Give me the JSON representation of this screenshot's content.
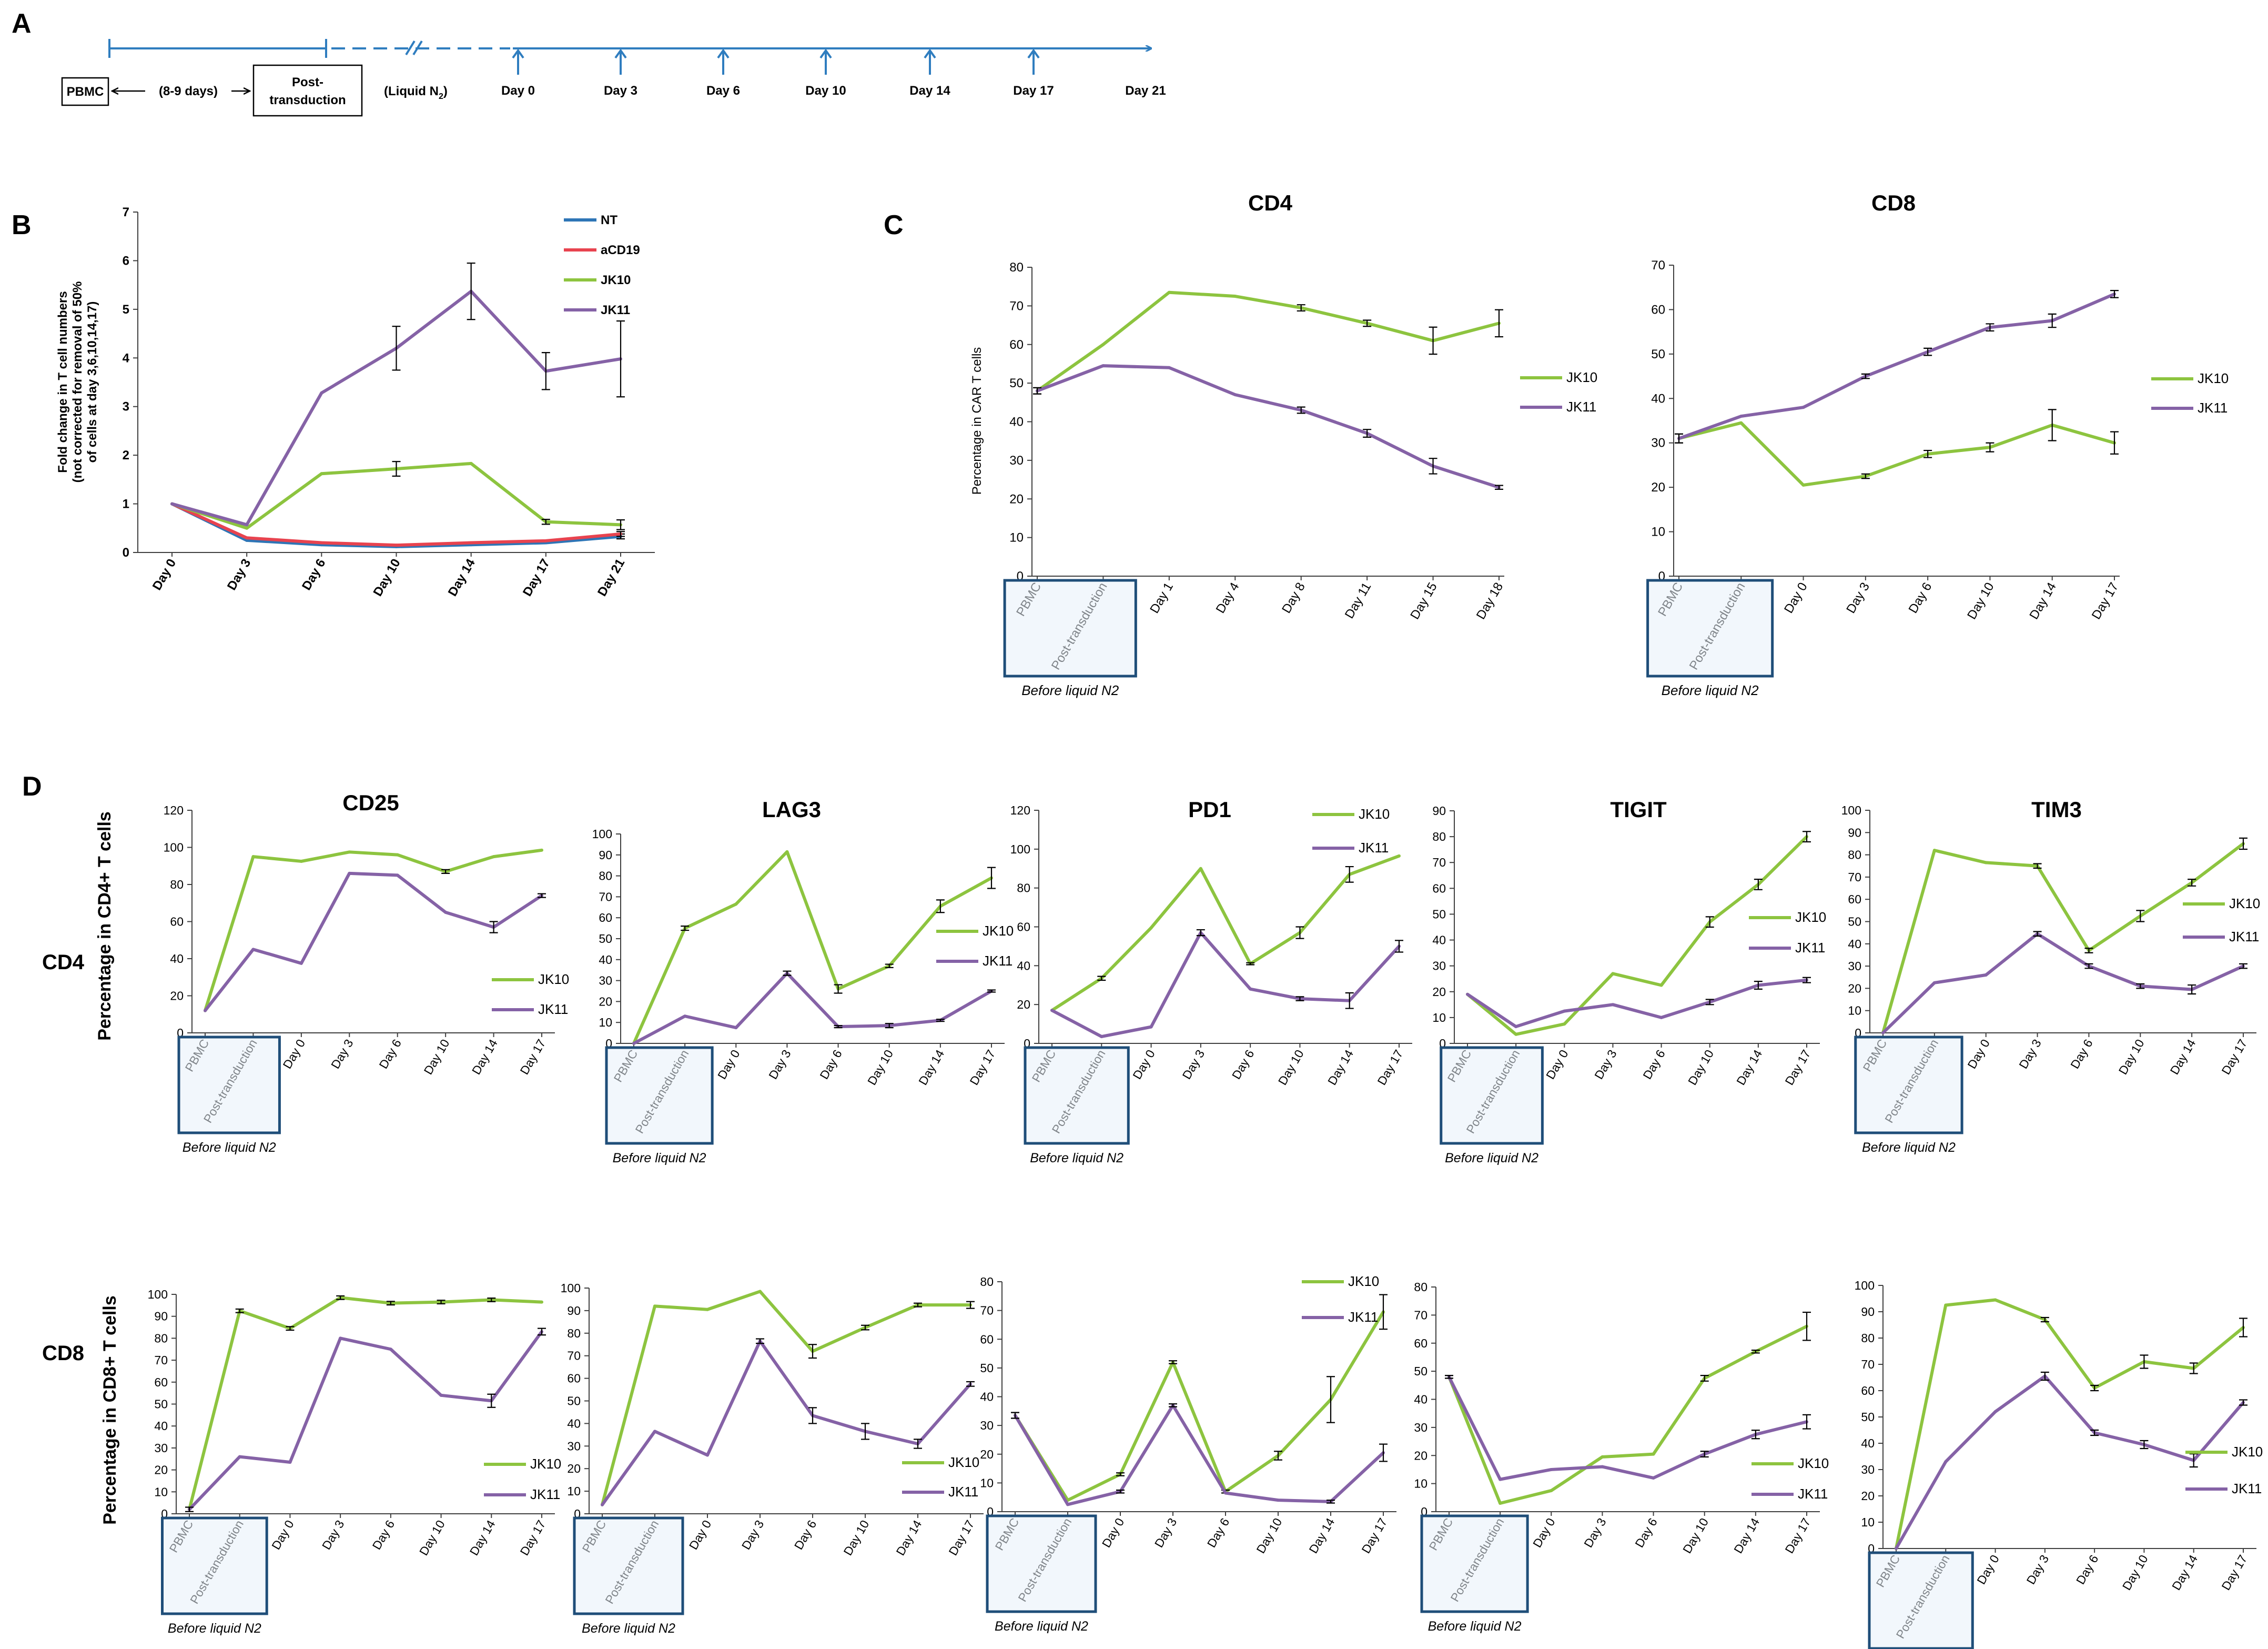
{
  "colors": {
    "NT": "#2E75B6",
    "aCD19": "#E8434F",
    "JK10": "#8DC43F",
    "JK11": "#8562A6",
    "timeline": "#2F7DBF",
    "box_fill": "#E8F1FA",
    "box_stroke": "#1F4E79",
    "axis": "#404040"
  },
  "panel_labels": {
    "a": "A",
    "b": "B",
    "c": "C",
    "d": "D"
  },
  "timeline": {
    "pbmc": "PBMC",
    "gap": "(8-9 days)",
    "post_line1": "Post-",
    "post_line2": "transduction",
    "liquid_prefix": "(Liquid N",
    "liquid_sub": "2",
    "liquid_suffix": ")",
    "days": [
      "Day 0",
      "Day 3",
      "Day 6",
      "Day 10",
      "Day 14",
      "Day 17",
      "Day 21"
    ]
  },
  "row_labels": {
    "cd4": "CD4",
    "cd8": "CD8"
  },
  "before_label": "Before liquid N2",
  "chart_data": [
    {
      "id": "B",
      "type": "line",
      "title": "",
      "ylabel": "Fold change in T cell numbers (not corrected for removal of 50% of cells at day 3,6,10,14,17)",
      "ylabel_lines": [
        "Fold change in T cell numbers",
        "(not corrected for removal of 50%",
        "of cells at day 3,6,10,14,17)"
      ],
      "xlabel": "",
      "ylim": [
        0,
        7
      ],
      "yticks": [
        0,
        1,
        2,
        3,
        4,
        5,
        6,
        7
      ],
      "categories": [
        "Day 0",
        "Day 3",
        "Day 6",
        "Day 10",
        "Day 14",
        "Day 17",
        "Day 21"
      ],
      "series": [
        {
          "name": "NT",
          "values": [
            1,
            0.25,
            0.16,
            0.12,
            0.16,
            0.2,
            0.33
          ],
          "errors": [
            0,
            0,
            0,
            0,
            0,
            0,
            0.05
          ]
        },
        {
          "name": "aCD19",
          "values": [
            1,
            0.3,
            0.2,
            0.15,
            0.2,
            0.24,
            0.38
          ],
          "errors": [
            0,
            0,
            0,
            0,
            0,
            0,
            0.05
          ]
        },
        {
          "name": "JK10",
          "values": [
            1,
            0.5,
            1.62,
            1.72,
            1.83,
            0.63,
            0.57
          ],
          "errors": [
            0,
            0,
            0,
            0.15,
            0,
            0.05,
            0.1
          ]
        },
        {
          "name": "JK11",
          "values": [
            1,
            0.57,
            3.28,
            4.2,
            5.37,
            3.73,
            3.98
          ],
          "errors": [
            0,
            0,
            0,
            0.45,
            0.58,
            0.38,
            0.78
          ]
        }
      ]
    },
    {
      "id": "C_CD4",
      "type": "line",
      "title": "CD4",
      "ylabel": "Percentage in CAR T cells",
      "ylim": [
        0,
        80
      ],
      "yticks": [
        0,
        10,
        20,
        30,
        40,
        50,
        60,
        70,
        80
      ],
      "categories": [
        "PBMC",
        "Post-transduction",
        "Day 1",
        "Day 4",
        "Day 8",
        "Day 11",
        "Day 15",
        "Day 18"
      ],
      "series": [
        {
          "name": "JK10",
          "values": [
            48,
            60,
            73.5,
            72.5,
            69.5,
            65.5,
            61,
            65.5
          ],
          "errors": [
            0.8,
            0,
            0,
            0,
            0.8,
            0.8,
            3.5,
            3.5
          ]
        },
        {
          "name": "JK11",
          "values": [
            48,
            54.5,
            54,
            47,
            43,
            37,
            28.5,
            23
          ],
          "errors": [
            0.8,
            0,
            0,
            0,
            0.8,
            1,
            2,
            0.5
          ]
        }
      ]
    },
    {
      "id": "C_CD8",
      "type": "line",
      "title": "CD8",
      "ylabel": "",
      "ylim": [
        0,
        70
      ],
      "yticks": [
        0,
        10,
        20,
        30,
        40,
        50,
        60,
        70
      ],
      "categories": [
        "PBMC",
        "Post-transduction",
        "Day 0",
        "Day 3",
        "Day 6",
        "Day 10",
        "Day 14",
        "Day 17"
      ],
      "series": [
        {
          "name": "JK10",
          "values": [
            31,
            34.5,
            20.5,
            22.5,
            27.5,
            29,
            34,
            30
          ],
          "errors": [
            1,
            0,
            0,
            0.5,
            0.8,
            1,
            3.5,
            2.5
          ]
        },
        {
          "name": "JK11",
          "values": [
            31,
            36,
            38,
            45,
            50.5,
            56,
            57.5,
            63.5
          ],
          "errors": [
            1,
            0,
            0,
            0.5,
            0.8,
            0.8,
            1.5,
            0.8
          ]
        }
      ]
    },
    {
      "id": "D_CD4_CD25",
      "type": "line",
      "title": "CD25",
      "ylabel": "Percentage in CD4+ T cells",
      "ylim": [
        0,
        120
      ],
      "yticks": [
        0,
        20,
        40,
        60,
        80,
        100,
        120
      ],
      "categories": [
        "PBMC",
        "Post-transduction",
        "Day 0",
        "Day 3",
        "Day 6",
        "Day 10",
        "Day 14",
        "Day 17"
      ],
      "series": [
        {
          "name": "JK10",
          "values": [
            12,
            95,
            92.5,
            97.5,
            96,
            87,
            95,
            98.5
          ],
          "errors": [
            0,
            0,
            0,
            0,
            0,
            1,
            0,
            0
          ]
        },
        {
          "name": "JK11",
          "values": [
            12,
            45,
            37.5,
            86,
            85,
            65,
            57,
            74
          ],
          "errors": [
            0,
            0,
            0,
            0,
            0,
            0,
            3,
            1
          ]
        }
      ]
    },
    {
      "id": "D_CD4_LAG3",
      "type": "line",
      "title": "LAG3",
      "ylabel": "",
      "ylim": [
        0,
        100
      ],
      "yticks": [
        0,
        10,
        20,
        30,
        40,
        50,
        60,
        70,
        80,
        90,
        100
      ],
      "categories": [
        "PBMC",
        "Post-transduction",
        "Day 0",
        "Day 3",
        "Day 6",
        "Day 10",
        "Day 14",
        "Day 17"
      ],
      "series": [
        {
          "name": "JK10",
          "values": [
            0,
            55,
            66.5,
            91.5,
            26,
            37,
            65.5,
            79
          ],
          "errors": [
            0,
            1,
            0,
            0,
            2,
            0.8,
            3,
            5
          ]
        },
        {
          "name": "JK11",
          "values": [
            0,
            13,
            7.5,
            33.5,
            8,
            8.5,
            11,
            25
          ],
          "errors": [
            0,
            0,
            0,
            1,
            0.5,
            1,
            0.5,
            0.5
          ]
        }
      ]
    },
    {
      "id": "D_CD4_PD1",
      "type": "line",
      "title": "PD1",
      "ylabel": "",
      "ylim": [
        0,
        120
      ],
      "yticks": [
        0,
        20,
        40,
        60,
        80,
        100,
        120
      ],
      "categories": [
        "PBMC",
        "Post-transduction",
        "Day 0",
        "Day 3",
        "Day 6",
        "Day 10",
        "Day 14",
        "Day 17"
      ],
      "series": [
        {
          "name": "JK10",
          "values": [
            17,
            33.5,
            59.5,
            90,
            41,
            57,
            87,
            96.5
          ],
          "errors": [
            0,
            1,
            0,
            0,
            0.5,
            3,
            4,
            0
          ]
        },
        {
          "name": "JK11",
          "values": [
            17,
            3.5,
            8.5,
            57,
            28,
            23,
            22,
            50
          ],
          "errors": [
            0,
            0,
            0,
            1.5,
            0,
            1,
            4,
            3
          ]
        }
      ]
    },
    {
      "id": "D_CD4_TIGIT",
      "type": "line",
      "title": "TIGIT",
      "ylabel": "",
      "ylim": [
        0,
        90
      ],
      "yticks": [
        0,
        10,
        20,
        30,
        40,
        50,
        60,
        70,
        80,
        90
      ],
      "categories": [
        "PBMC",
        "Post-transduction",
        "Day 0",
        "Day 3",
        "Day 6",
        "Day 10",
        "Day 14",
        "Day 17"
      ],
      "series": [
        {
          "name": "JK10",
          "values": [
            19,
            3.5,
            7.5,
            27,
            22.5,
            47,
            61.5,
            80
          ],
          "errors": [
            0,
            0,
            0,
            0,
            0,
            2,
            2,
            2
          ]
        },
        {
          "name": "JK11",
          "values": [
            19,
            6.5,
            12.5,
            15,
            10,
            16,
            22.5,
            24.5
          ],
          "errors": [
            0,
            0,
            0,
            0,
            0,
            1,
            1.5,
            1
          ]
        }
      ]
    },
    {
      "id": "D_CD4_TIM3",
      "type": "line",
      "title": "TIM3",
      "ylabel": "",
      "ylim": [
        0,
        100
      ],
      "yticks": [
        0,
        10,
        20,
        30,
        40,
        50,
        60,
        70,
        80,
        90,
        100
      ],
      "categories": [
        "PBMC",
        "Post-transduction",
        "Day 0",
        "Day 3",
        "Day 6",
        "Day 10",
        "Day 14",
        "Day 17"
      ],
      "series": [
        {
          "name": "JK10",
          "values": [
            0,
            82,
            76.5,
            75,
            37,
            52.5,
            67.5,
            85
          ],
          "errors": [
            0,
            0,
            0,
            1,
            1,
            2.5,
            1.5,
            2.5
          ]
        },
        {
          "name": "JK11",
          "values": [
            0,
            22.5,
            26,
            44.5,
            30,
            21,
            19.5,
            30
          ],
          "errors": [
            0,
            0,
            0,
            1,
            1,
            1,
            2,
            1
          ]
        }
      ]
    },
    {
      "id": "D_CD8_CD25",
      "type": "line",
      "title": "",
      "ylabel": "Percentage in CD8+ T cells",
      "ylim": [
        0,
        100
      ],
      "yticks": [
        0,
        10,
        20,
        30,
        40,
        50,
        60,
        70,
        80,
        90,
        100
      ],
      "categories": [
        "PBMC",
        "Post-transduction",
        "Day 0",
        "Day 3",
        "Day 6",
        "Day 10",
        "Day 14",
        "Day 17"
      ],
      "series": [
        {
          "name": "JK10",
          "values": [
            2,
            92.5,
            84.5,
            98.5,
            96,
            96.5,
            97.5,
            96.5
          ],
          "errors": [
            0,
            0.8,
            0.8,
            0.8,
            0.8,
            0.8,
            0.8,
            0
          ]
        },
        {
          "name": "JK11",
          "values": [
            2,
            26,
            23.5,
            80,
            75,
            54,
            51.5,
            83
          ],
          "errors": [
            1,
            0,
            0,
            0,
            0,
            0,
            3,
            1.5
          ]
        }
      ]
    },
    {
      "id": "D_CD8_LAG3",
      "type": "line",
      "title": "",
      "ylabel": "",
      "ylim": [
        0,
        100
      ],
      "yticks": [
        0,
        10,
        20,
        30,
        40,
        50,
        60,
        70,
        80,
        90,
        100
      ],
      "categories": [
        "PBMC",
        "Post-transduction",
        "Day 0",
        "Day 3",
        "Day 6",
        "Day 10",
        "Day 14",
        "Day 17"
      ],
      "series": [
        {
          "name": "JK10",
          "values": [
            4,
            92,
            90.5,
            98.5,
            72,
            82.5,
            92.5,
            92.5
          ],
          "errors": [
            0,
            0,
            0,
            0,
            3,
            1,
            0.8,
            1.5
          ]
        },
        {
          "name": "JK11",
          "values": [
            4,
            36.5,
            26,
            76.5,
            43.5,
            36.5,
            31,
            57.5
          ],
          "errors": [
            0,
            0,
            0,
            1,
            3.5,
            3.5,
            2,
            1
          ]
        }
      ]
    },
    {
      "id": "D_CD8_PD1",
      "type": "line",
      "title": "",
      "ylabel": "",
      "ylim": [
        0,
        80
      ],
      "yticks": [
        0,
        10,
        20,
        30,
        40,
        50,
        60,
        70,
        80
      ],
      "categories": [
        "PBMC",
        "Post-transduction",
        "Day 0",
        "Day 3",
        "Day 6",
        "Day 10",
        "Day 14",
        "Day 17"
      ],
      "series": [
        {
          "name": "JK10",
          "values": [
            33.5,
            4,
            13,
            52,
            7,
            19.5,
            39,
            69.5
          ],
          "errors": [
            1,
            0,
            0.5,
            0.5,
            0.5,
            1.5,
            8,
            6
          ]
        },
        {
          "name": "JK11",
          "values": [
            33.5,
            2.5,
            7,
            37,
            6.5,
            4,
            3.5,
            20.5
          ],
          "errors": [
            1,
            0,
            0.5,
            0.5,
            0,
            0,
            0.5,
            3
          ]
        }
      ]
    },
    {
      "id": "D_CD8_TIGIT",
      "type": "line",
      "title": "",
      "ylabel": "",
      "ylim": [
        0,
        80
      ],
      "yticks": [
        0,
        10,
        20,
        30,
        40,
        50,
        60,
        70,
        80
      ],
      "categories": [
        "PBMC",
        "Post-transduction",
        "Day 0",
        "Day 3",
        "Day 6",
        "Day 10",
        "Day 14",
        "Day 17"
      ],
      "series": [
        {
          "name": "JK10",
          "values": [
            48,
            3,
            7.5,
            19.5,
            20.5,
            47.5,
            57,
            66
          ],
          "errors": [
            0.5,
            0,
            0,
            0,
            0,
            1,
            0.5,
            5
          ]
        },
        {
          "name": "JK11",
          "values": [
            48,
            11.5,
            15,
            16,
            12,
            20.5,
            27.5,
            32
          ],
          "errors": [
            0.5,
            0,
            0,
            0,
            0,
            1,
            1.5,
            2.5
          ]
        }
      ]
    },
    {
      "id": "D_CD8_TIM3",
      "type": "line",
      "title": "",
      "ylabel": "",
      "ylim": [
        0,
        100
      ],
      "yticks": [
        0,
        10,
        20,
        30,
        40,
        50,
        60,
        70,
        80,
        90,
        100
      ],
      "categories": [
        "PBMC",
        "Post-transduction",
        "Day 0",
        "Day 3",
        "Day 6",
        "Day 10",
        "Day 14",
        "Day 17"
      ],
      "series": [
        {
          "name": "JK10",
          "values": [
            0,
            92.5,
            94.5,
            87,
            61,
            71,
            68.5,
            84
          ],
          "errors": [
            0,
            0,
            0,
            0.8,
            1,
            2.5,
            2,
            3.5
          ]
        },
        {
          "name": "JK11",
          "values": [
            0,
            33,
            52,
            65.5,
            44,
            39.5,
            33.5,
            55.5
          ],
          "errors": [
            0,
            0,
            0,
            1.5,
            1,
            1.5,
            2.5,
            1
          ]
        }
      ]
    }
  ]
}
